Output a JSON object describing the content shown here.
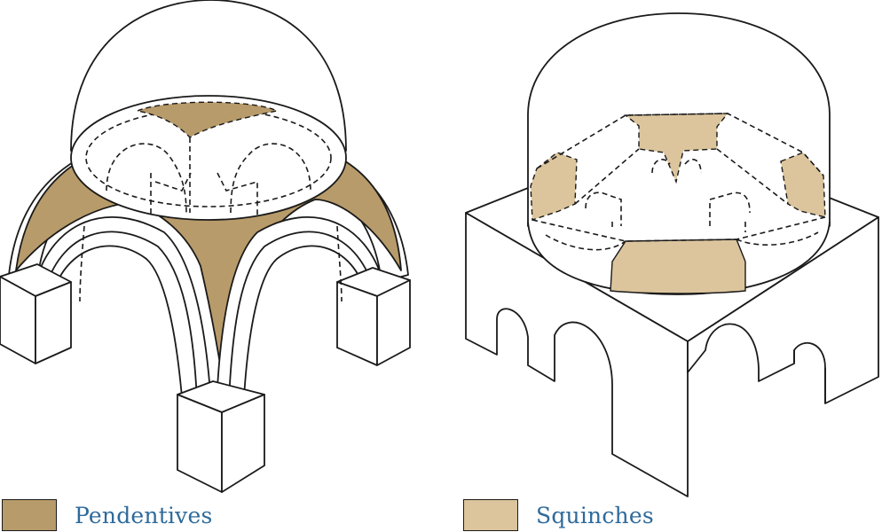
{
  "colors": {
    "pendentive": "#B89B6A",
    "squinch": "#DCC59D",
    "stroke": "#1a1a1a",
    "label": "#2E6A9B"
  },
  "legend": {
    "pendentives_label": "Pendentives",
    "squinches_label": "Squinches"
  }
}
